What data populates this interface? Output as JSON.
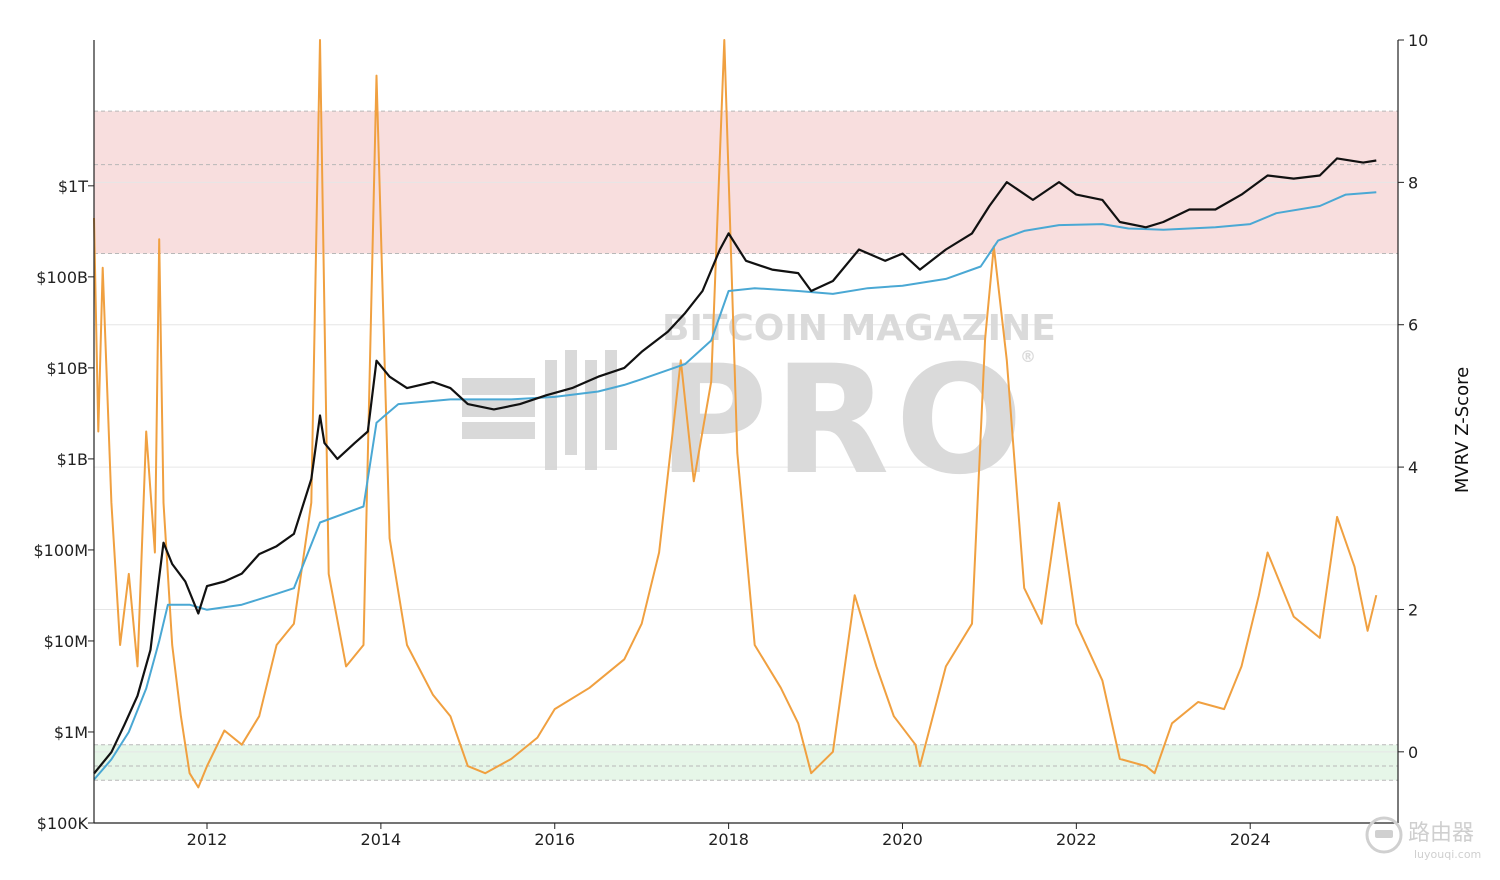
{
  "chart_data": {
    "type": "line",
    "title": "",
    "x_range": [
      2010.7,
      2025.7
    ],
    "x_ticks": [
      2012,
      2014,
      2016,
      2018,
      2020,
      2022,
      2024
    ],
    "x_tick_labels": [
      "2012",
      "2014",
      "2016",
      "2018",
      "2020",
      "2022",
      "2024"
    ],
    "left_axis": {
      "scale": "log",
      "range": [
        100000,
        40000000000000
      ],
      "ticks": [
        100000,
        1000000,
        10000000,
        100000000,
        1000000000,
        10000000000,
        100000000000,
        1000000000000
      ],
      "tick_labels": [
        "$100K",
        "$1M",
        "$10M",
        "$100M",
        "$1B",
        "$10B",
        "$100B",
        "$1T"
      ]
    },
    "right_axis": {
      "label": "MVRV Z-Score",
      "range": [
        -1,
        10
      ],
      "ticks": [
        0,
        2,
        4,
        6,
        8,
        10
      ],
      "tick_labels": [
        "0",
        "2",
        "4",
        "6",
        "8",
        "10"
      ]
    },
    "bands": [
      {
        "zone": "overvalued",
        "z_range": [
          7,
          9
        ],
        "z_midline": 8.25,
        "color": "#f8dede"
      },
      {
        "zone": "undervalued",
        "z_range": [
          -0.4,
          0.1
        ],
        "z_midline": -0.2,
        "color": "#e6f6e8"
      }
    ],
    "series": [
      {
        "axis": "left",
        "color": "#111111",
        "points": [
          [
            2010.7,
            350000
          ],
          [
            2010.9,
            600000
          ],
          [
            2011.05,
            1200000
          ],
          [
            2011.2,
            2500000
          ],
          [
            2011.35,
            8000000
          ],
          [
            2011.45,
            50000000
          ],
          [
            2011.5,
            120000000
          ],
          [
            2011.6,
            70000000
          ],
          [
            2011.75,
            45000000
          ],
          [
            2011.9,
            20000000
          ],
          [
            2012.0,
            40000000
          ],
          [
            2012.2,
            45000000
          ],
          [
            2012.4,
            55000000
          ],
          [
            2012.6,
            90000000
          ],
          [
            2012.8,
            110000000
          ],
          [
            2013.0,
            150000000
          ],
          [
            2013.2,
            600000000
          ],
          [
            2013.3,
            3000000000
          ],
          [
            2013.35,
            1500000000
          ],
          [
            2013.5,
            1000000000
          ],
          [
            2013.7,
            1500000000
          ],
          [
            2013.85,
            2000000000
          ],
          [
            2013.95,
            12000000000
          ],
          [
            2014.1,
            8000000000
          ],
          [
            2014.3,
            6000000000
          ],
          [
            2014.6,
            7000000000
          ],
          [
            2014.8,
            6000000000
          ],
          [
            2015.0,
            4000000000
          ],
          [
            2015.3,
            3500000000
          ],
          [
            2015.6,
            4000000000
          ],
          [
            2015.9,
            5000000000
          ],
          [
            2016.2,
            6000000000
          ],
          [
            2016.5,
            8000000000
          ],
          [
            2016.8,
            10000000000
          ],
          [
            2017.0,
            15000000000
          ],
          [
            2017.3,
            25000000000
          ],
          [
            2017.5,
            40000000000
          ],
          [
            2017.7,
            70000000000
          ],
          [
            2017.9,
            200000000000
          ],
          [
            2018.0,
            300000000000
          ],
          [
            2018.2,
            150000000000
          ],
          [
            2018.5,
            120000000000
          ],
          [
            2018.8,
            110000000000
          ],
          [
            2018.95,
            70000000000
          ],
          [
            2019.2,
            90000000000
          ],
          [
            2019.5,
            200000000000
          ],
          [
            2019.8,
            150000000000
          ],
          [
            2020.0,
            180000000000
          ],
          [
            2020.2,
            120000000000
          ],
          [
            2020.5,
            200000000000
          ],
          [
            2020.8,
            300000000000
          ],
          [
            2021.0,
            600000000000
          ],
          [
            2021.2,
            1100000000000
          ],
          [
            2021.5,
            700000000000
          ],
          [
            2021.8,
            1100000000000
          ],
          [
            2022.0,
            800000000000
          ],
          [
            2022.3,
            700000000000
          ],
          [
            2022.5,
            400000000000
          ],
          [
            2022.8,
            350000000000
          ],
          [
            2023.0,
            400000000000
          ],
          [
            2023.3,
            550000000000
          ],
          [
            2023.6,
            550000000000
          ],
          [
            2023.9,
            800000000000
          ],
          [
            2024.2,
            1300000000000
          ],
          [
            2024.5,
            1200000000000
          ],
          [
            2024.8,
            1300000000000
          ],
          [
            2025.0,
            2000000000000
          ],
          [
            2025.3,
            1800000000000
          ],
          [
            2025.45,
            1900000000000
          ]
        ]
      },
      {
        "axis": "left",
        "color": "#4aa8d4",
        "points": [
          [
            2010.7,
            300000
          ],
          [
            2010.9,
            500000
          ],
          [
            2011.1,
            1000000
          ],
          [
            2011.3,
            3000000
          ],
          [
            2011.45,
            10000000
          ],
          [
            2011.55,
            25000000
          ],
          [
            2011.8,
            25000000
          ],
          [
            2012.0,
            22000000
          ],
          [
            2012.4,
            25000000
          ],
          [
            2012.8,
            33000000
          ],
          [
            2013.0,
            38000000
          ],
          [
            2013.3,
            200000000
          ],
          [
            2013.8,
            300000000
          ],
          [
            2013.95,
            2500000000
          ],
          [
            2014.2,
            4000000000
          ],
          [
            2014.8,
            4500000000
          ],
          [
            2015.5,
            4500000000
          ],
          [
            2016.0,
            4800000000
          ],
          [
            2016.5,
            5500000000
          ],
          [
            2016.8,
            6500000000
          ],
          [
            2017.0,
            7500000000
          ],
          [
            2017.5,
            11000000000
          ],
          [
            2017.8,
            20000000000
          ],
          [
            2018.0,
            70000000000
          ],
          [
            2018.3,
            75000000000
          ],
          [
            2018.8,
            70000000000
          ],
          [
            2019.2,
            65000000000
          ],
          [
            2019.6,
            75000000000
          ],
          [
            2020.0,
            80000000000
          ],
          [
            2020.5,
            95000000000
          ],
          [
            2020.9,
            130000000000
          ],
          [
            2021.1,
            250000000000
          ],
          [
            2021.4,
            320000000000
          ],
          [
            2021.8,
            370000000000
          ],
          [
            2022.3,
            380000000000
          ],
          [
            2022.6,
            340000000000
          ],
          [
            2023.0,
            330000000000
          ],
          [
            2023.6,
            350000000000
          ],
          [
            2024.0,
            380000000000
          ],
          [
            2024.3,
            500000000000
          ],
          [
            2024.8,
            600000000000
          ],
          [
            2025.1,
            800000000000
          ],
          [
            2025.45,
            850000000000
          ]
        ]
      },
      {
        "axis": "right",
        "color": "#f0a040",
        "points": [
          [
            2010.7,
            7.5
          ],
          [
            2010.75,
            4.5
          ],
          [
            2010.8,
            6.8
          ],
          [
            2010.9,
            3.5
          ],
          [
            2011.0,
            1.5
          ],
          [
            2011.1,
            2.5
          ],
          [
            2011.2,
            1.2
          ],
          [
            2011.3,
            4.5
          ],
          [
            2011.4,
            2.8
          ],
          [
            2011.45,
            7.2
          ],
          [
            2011.5,
            3.5
          ],
          [
            2011.6,
            1.5
          ],
          [
            2011.7,
            0.5
          ],
          [
            2011.8,
            -0.3
          ],
          [
            2011.9,
            -0.5
          ],
          [
            2012.0,
            -0.2
          ],
          [
            2012.2,
            0.3
          ],
          [
            2012.4,
            0.1
          ],
          [
            2012.6,
            0.5
          ],
          [
            2012.8,
            1.5
          ],
          [
            2013.0,
            1.8
          ],
          [
            2013.2,
            3.5
          ],
          [
            2013.3,
            10.0
          ],
          [
            2013.4,
            2.5
          ],
          [
            2013.6,
            1.2
          ],
          [
            2013.8,
            1.5
          ],
          [
            2013.95,
            9.5
          ],
          [
            2014.1,
            3.0
          ],
          [
            2014.3,
            1.5
          ],
          [
            2014.6,
            0.8
          ],
          [
            2014.8,
            0.5
          ],
          [
            2015.0,
            -0.2
          ],
          [
            2015.2,
            -0.3
          ],
          [
            2015.5,
            -0.1
          ],
          [
            2015.8,
            0.2
          ],
          [
            2016.0,
            0.6
          ],
          [
            2016.4,
            0.9
          ],
          [
            2016.8,
            1.3
          ],
          [
            2017.0,
            1.8
          ],
          [
            2017.2,
            2.8
          ],
          [
            2017.45,
            5.5
          ],
          [
            2017.6,
            3.8
          ],
          [
            2017.8,
            5.2
          ],
          [
            2017.95,
            10.0
          ],
          [
            2018.1,
            4.2
          ],
          [
            2018.3,
            1.5
          ],
          [
            2018.6,
            0.9
          ],
          [
            2018.8,
            0.4
          ],
          [
            2018.95,
            -0.3
          ],
          [
            2019.2,
            0.0
          ],
          [
            2019.45,
            2.2
          ],
          [
            2019.7,
            1.2
          ],
          [
            2019.9,
            0.5
          ],
          [
            2020.15,
            0.1
          ],
          [
            2020.2,
            -0.2
          ],
          [
            2020.5,
            1.2
          ],
          [
            2020.8,
            1.8
          ],
          [
            2020.95,
            5.8
          ],
          [
            2021.05,
            7.1
          ],
          [
            2021.2,
            5.5
          ],
          [
            2021.4,
            2.3
          ],
          [
            2021.6,
            1.8
          ],
          [
            2021.8,
            3.5
          ],
          [
            2022.0,
            1.8
          ],
          [
            2022.3,
            1.0
          ],
          [
            2022.5,
            -0.1
          ],
          [
            2022.8,
            -0.2
          ],
          [
            2022.9,
            -0.3
          ],
          [
            2023.1,
            0.4
          ],
          [
            2023.4,
            0.7
          ],
          [
            2023.7,
            0.6
          ],
          [
            2023.9,
            1.2
          ],
          [
            2024.1,
            2.2
          ],
          [
            2024.2,
            2.8
          ],
          [
            2024.5,
            1.9
          ],
          [
            2024.8,
            1.6
          ],
          [
            2025.0,
            3.3
          ],
          [
            2025.2,
            2.6
          ],
          [
            2025.35,
            1.7
          ],
          [
            2025.45,
            2.2
          ]
        ]
      }
    ]
  },
  "watermark": {
    "line1": "BITCOIN MAGAZINE",
    "line2": "PRO",
    "registered": "®"
  },
  "corner_logo": {
    "line1": "路由器",
    "line2": "luyouqi.com"
  }
}
